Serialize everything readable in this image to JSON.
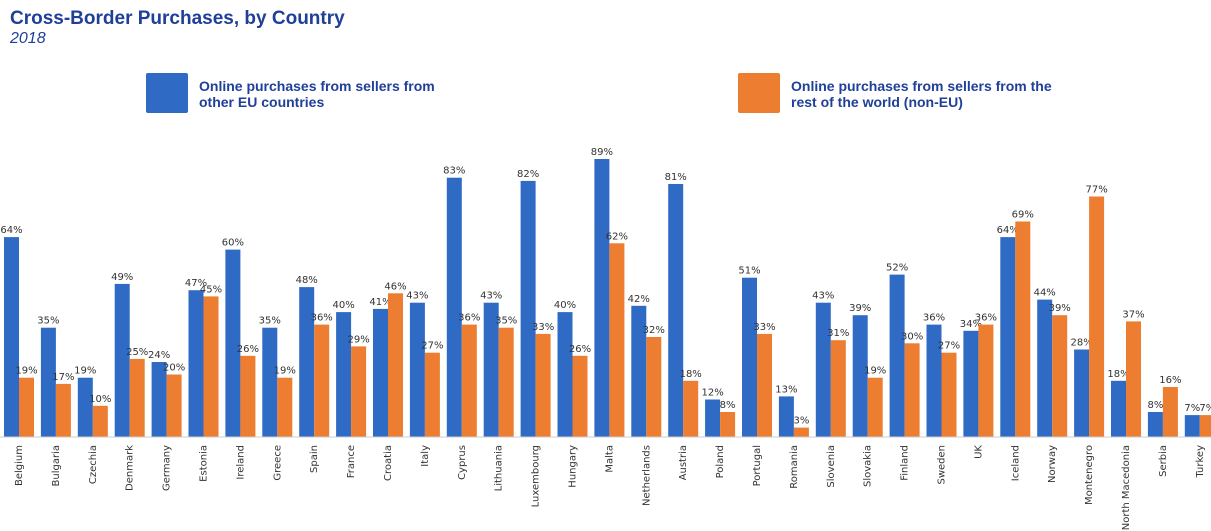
{
  "header": {
    "title": "Cross-Border Purchases, by Country",
    "subtitle": "2018"
  },
  "colors": {
    "eu": "#2f6bc4",
    "non_eu": "#ed7d31"
  },
  "chart_data": {
    "type": "bar",
    "title": "Cross-Border Purchases, by Country",
    "subtitle": "2018",
    "xlabel": "",
    "ylabel": "",
    "ylim": [
      0,
      89
    ],
    "grid": false,
    "legend_position": "top",
    "categories": [
      "Belgium",
      "Bulgaria",
      "Czechia",
      "Denmark",
      "Germany",
      "Estonia",
      "Ireland",
      "Greece",
      "Spain",
      "France",
      "Croatia",
      "Italy",
      "Cyprus",
      "Lithuania",
      "Luxembourg",
      "Hungary",
      "Malta",
      "Netherlands",
      "Austria",
      "Poland",
      "Portugal",
      "Romania",
      "Slovenia",
      "Slovakia",
      "Finland",
      "Sweden",
      "UK",
      "Iceland",
      "Norway",
      "Montenegro",
      "North Macedonia",
      "Serbia",
      "Turkey"
    ],
    "series": [
      {
        "name": "Online purchases from sellers from other EU countries",
        "values": [
          64,
          35,
          19,
          49,
          24,
          47,
          60,
          35,
          48,
          40,
          41,
          43,
          83,
          43,
          82,
          40,
          89,
          42,
          81,
          12,
          51,
          13,
          43,
          39,
          52,
          36,
          34,
          64,
          44,
          28,
          18,
          8,
          7
        ]
      },
      {
        "name": "Online purchases from sellers from the rest of the world (non-EU)",
        "values": [
          19,
          17,
          10,
          25,
          20,
          45,
          26,
          19,
          36,
          29,
          46,
          27,
          36,
          35,
          33,
          26,
          62,
          32,
          18,
          8,
          33,
          3,
          31,
          19,
          30,
          27,
          36,
          69,
          39,
          77,
          37,
          16,
          7
        ]
      }
    ],
    "value_suffix": "%"
  }
}
